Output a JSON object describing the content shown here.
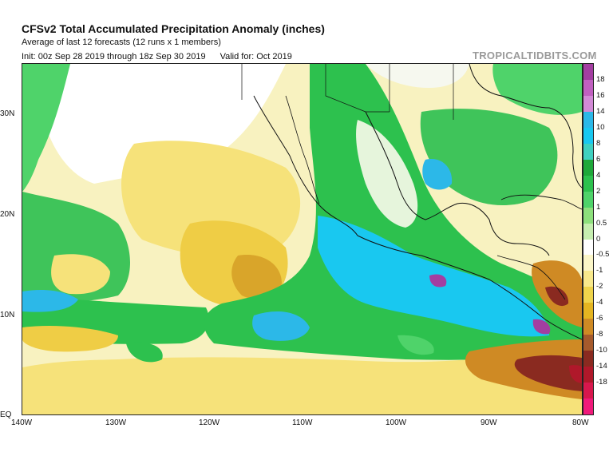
{
  "header": {
    "title": "CFSv2 Total Accumulated Precipitation Anomaly (inches)",
    "subtitle": "Average of last 12 forecasts (12 runs x 1 members)",
    "init": "Init: 00z Sep 28 2019 through 18z Sep 30 2019",
    "valid": "Valid for: Oct 2019",
    "source": "TROPICALTIDBITS.COM"
  },
  "map": {
    "lat_labels": [
      "30N",
      "20N",
      "10N",
      "EQ"
    ],
    "lon_labels": [
      "140W",
      "130W",
      "120W",
      "110W",
      "100W",
      "90W",
      "80W"
    ],
    "extent": {
      "lon": [
        -140,
        -80
      ],
      "lat": [
        0,
        35
      ]
    }
  },
  "colorbar": {
    "ticks": [
      "18",
      "16",
      "14",
      "10",
      "8",
      "6",
      "4",
      "2",
      "1",
      "0.5",
      "0",
      "-0.5",
      "-1",
      "-2",
      "-4",
      "-6",
      "-8",
      "-10",
      "-14",
      "-18"
    ],
    "colors": [
      "#a33ea1",
      "#c060c0",
      "#d28ad6",
      "#2cb8e8",
      "#19c8f0",
      "#3fd0c0",
      "#1fa83a",
      "#2dc14e",
      "#4fd36a",
      "#8de07c",
      "#c6eeb0",
      "#ffffff",
      "#fbf6c8",
      "#f8e98c",
      "#efd44b",
      "#e5b521",
      "#cf8a24",
      "#a65a2c",
      "#8a2a20",
      "#b0182a",
      "#d8174d",
      "#f01a7a"
    ]
  }
}
